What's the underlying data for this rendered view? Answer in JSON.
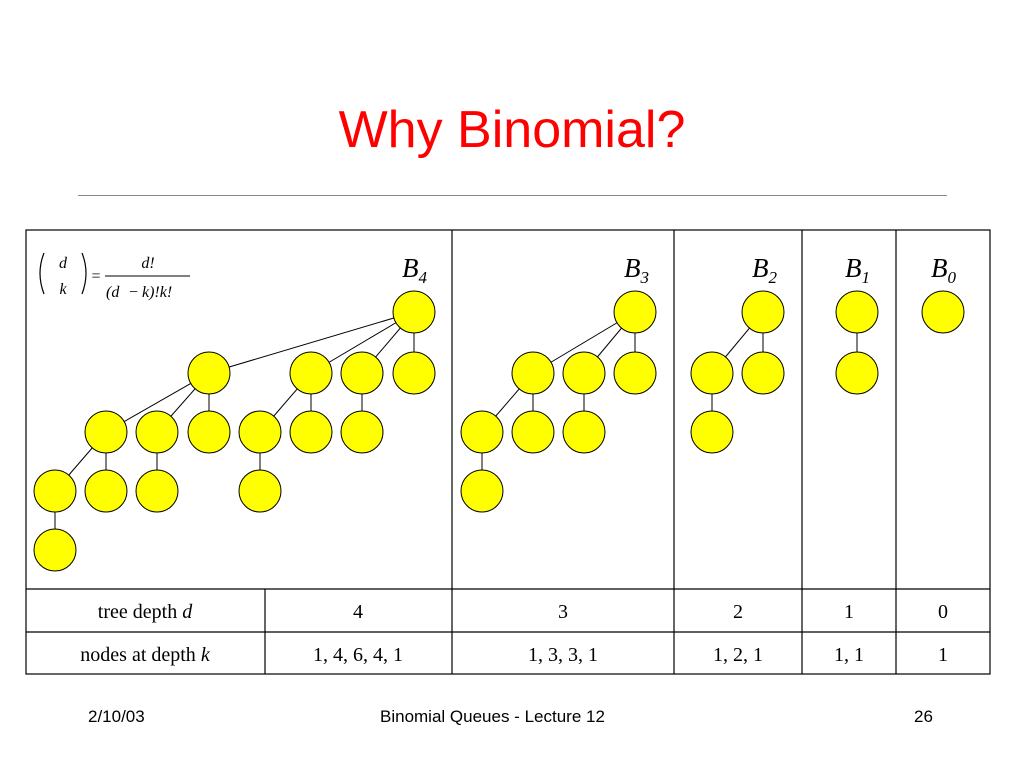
{
  "slide": {
    "title": "Why Binomial?",
    "footer_left": "2/10/03",
    "footer_center": "Binomial Queues - Lecture 12",
    "footer_right": "26"
  },
  "formula": {
    "lhs_top": "d",
    "lhs_bottom": "k",
    "equals": "=",
    "rhs_top": "d!",
    "rhs_bottom_parts": [
      "(d",
      "−",
      "k)!k!"
    ]
  },
  "trees": [
    {
      "name": "B",
      "sub": "4"
    },
    {
      "name": "B",
      "sub": "3"
    },
    {
      "name": "B",
      "sub": "2"
    },
    {
      "name": "B",
      "sub": "1"
    },
    {
      "name": "B",
      "sub": "0"
    }
  ],
  "table": {
    "rows": [
      {
        "label": "tree depth ",
        "label_var": "d",
        "values": [
          "4",
          "3",
          "2",
          "1",
          "0"
        ]
      },
      {
        "label": "nodes at depth ",
        "label_var": "k",
        "values": [
          "1, 4, 6, 4, 1",
          "1, 3, 3, 1",
          "1, 2, 1",
          "1, 1",
          "1"
        ]
      }
    ]
  },
  "colors": {
    "node_fill": "#ffff00",
    "title": "#ff0000"
  }
}
